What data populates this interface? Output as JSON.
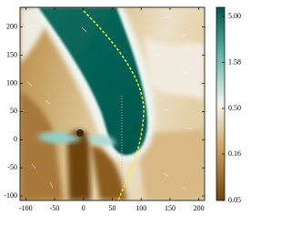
{
  "chart_data": {
    "type": "heatmap",
    "xlim": [
      -110,
      210
    ],
    "xticks": [
      -100,
      -50,
      0,
      50,
      100,
      150,
      200
    ],
    "ylim": [
      -108,
      235
    ],
    "yticks": [
      -100,
      -50,
      0,
      50,
      100,
      150,
      200
    ],
    "colorbar": {
      "scale": "log",
      "lim": [
        0.05,
        6.3
      ],
      "ticks": [
        {
          "value": 5,
          "label": "5.00"
        },
        1.58,
        {
          "value": 0.5,
          "label": "0.50"
        },
        0.16,
        0.05
      ],
      "colormap": [
        "#6e430c",
        "#c99a55",
        "#f6f4ee",
        "#5fb8aa",
        "#00564b"
      ]
    }
  }
}
